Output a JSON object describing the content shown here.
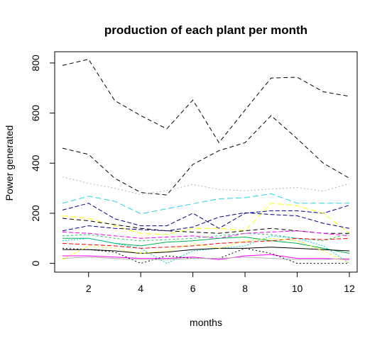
{
  "chart_data": {
    "type": "line",
    "title": "production of each plant per month",
    "xlabel": "months",
    "ylabel": "Power generated",
    "xlim": [
      0.7,
      12.3
    ],
    "ylim": [
      -35,
      845
    ],
    "xticks": [
      2,
      4,
      6,
      8,
      10,
      12
    ],
    "yticks": [
      0,
      200,
      400,
      600,
      800
    ],
    "grid": false,
    "legend": "none",
    "x": [
      1,
      2,
      3,
      4,
      5,
      6,
      7,
      8,
      9,
      10,
      11,
      12
    ],
    "series": [
      {
        "color": "#000000",
        "dash": "6,4",
        "values": [
          790,
          815,
          650,
          590,
          537,
          652,
          482,
          612,
          740,
          743,
          685,
          667
        ]
      },
      {
        "color": "#000000",
        "dash": "6,4",
        "values": [
          460,
          435,
          340,
          283,
          273,
          395,
          450,
          482,
          590,
          498,
          400,
          340
        ]
      },
      {
        "color": "#b3b3b3",
        "dash": "2,3",
        "values": [
          345,
          320,
          300,
          275,
          290,
          315,
          295,
          290,
          297,
          303,
          288,
          318
        ]
      },
      {
        "color": "#22d3e6",
        "dash": "8,4",
        "values": [
          240,
          268,
          248,
          198,
          218,
          238,
          258,
          262,
          278,
          240,
          240,
          240
        ]
      },
      {
        "color": "#00008b",
        "dash": "6,3",
        "values": [
          213,
          240,
          178,
          150,
          150,
          200,
          140,
          200,
          210,
          210,
          200,
          232
        ]
      },
      {
        "color": "#ffff00",
        "dash": "8,4",
        "values": [
          190,
          180,
          150,
          120,
          115,
          140,
          140,
          130,
          240,
          230,
          200,
          120
        ]
      },
      {
        "color": "#000000",
        "dash": "6,4",
        "values": [
          180,
          170,
          155,
          140,
          130,
          125,
          120,
          130,
          140,
          130,
          120,
          120
        ]
      },
      {
        "color": "#00008b",
        "dash": "6,3",
        "values": [
          130,
          150,
          140,
          135,
          130,
          145,
          185,
          202,
          195,
          190,
          160,
          140
        ]
      },
      {
        "color": "#ff00ff",
        "dash": "6,3",
        "values": [
          125,
          120,
          110,
          100,
          105,
          110,
          100,
          120,
          125,
          130,
          120,
          110
        ]
      },
      {
        "color": "#22c55e",
        "dash": "3,3",
        "values": [
          110,
          115,
          100,
          90,
          95,
          100,
          110,
          120,
          115,
          100,
          90,
          120
        ]
      },
      {
        "color": "#00b050",
        "dash": "",
        "values": [
          100,
          100,
          80,
          70,
          85,
          90,
          100,
          105,
          90,
          80,
          60,
          40
        ]
      },
      {
        "color": "#00ced1",
        "dash": "2,2",
        "values": [
          90,
          100,
          80,
          60,
          0,
          50,
          60,
          70,
          110,
          100,
          70,
          0
        ]
      },
      {
        "color": "#ff0000",
        "dash": "6,3",
        "values": [
          80,
          75,
          70,
          60,
          65,
          70,
          80,
          85,
          90,
          100,
          95,
          100
        ]
      },
      {
        "color": "#000000",
        "dash": "",
        "values": [
          55,
          55,
          50,
          40,
          45,
          55,
          60,
          60,
          65,
          60,
          55,
          50
        ]
      },
      {
        "color": "#ff00ff",
        "dash": "",
        "values": [
          30,
          30,
          25,
          20,
          20,
          25,
          15,
          30,
          35,
          20,
          20,
          15
        ]
      },
      {
        "color": "#000000",
        "dash": "2,3",
        "values": [
          60,
          55,
          45,
          0,
          30,
          20,
          20,
          60,
          40,
          0,
          0,
          0
        ]
      },
      {
        "color": "#b3b3b3",
        "dash": "",
        "values": [
          20,
          25,
          20,
          15,
          15,
          20,
          20,
          25,
          20,
          15,
          15,
          20
        ]
      },
      {
        "color": "#ffff00",
        "dash": "3,3",
        "values": [
          15,
          70,
          60,
          40,
          50,
          80,
          60,
          90,
          100,
          90,
          50,
          0
        ]
      }
    ]
  }
}
